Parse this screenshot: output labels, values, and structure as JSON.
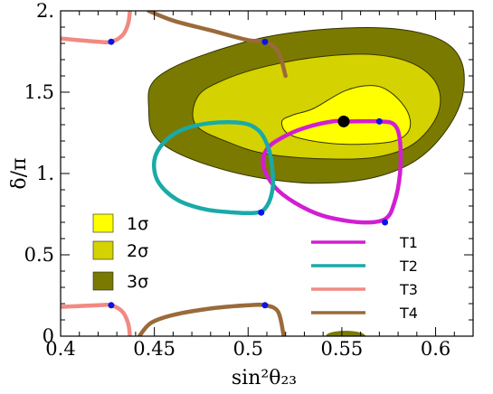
{
  "chart_data": {
    "type": "contour",
    "xlabel": "sin²θ₂₃",
    "ylabel": "δ/π",
    "xlim": [
      0.4,
      0.62
    ],
    "ylim": [
      0,
      2
    ],
    "x_ticks": [
      "0.4",
      "0.45",
      "0.5",
      "0.55",
      "0.6"
    ],
    "y_ticks": [
      "0",
      "0.5",
      "1.",
      "1.5",
      "2."
    ],
    "colors": {
      "sigma1": "#ffff00",
      "sigma2": "#d4d200",
      "sigma3": "#7a7a00",
      "T1": "#d21ed2",
      "T2": "#19aaa8",
      "T3": "#f08a82",
      "T4": "#9a6a3a",
      "endpoint": "#0a14e6"
    },
    "best_fit": {
      "x": 0.551,
      "y": 1.32
    },
    "regions": [
      {
        "name": "1σ",
        "points": [
          [
            0.535,
            1.4
          ],
          [
            0.552,
            1.51
          ],
          [
            0.567,
            1.54
          ],
          [
            0.577,
            1.49
          ],
          [
            0.585,
            1.38
          ],
          [
            0.586,
            1.27
          ],
          [
            0.578,
            1.2
          ],
          [
            0.56,
            1.18
          ],
          [
            0.54,
            1.19
          ],
          [
            0.522,
            1.24
          ],
          [
            0.518,
            1.32
          ],
          [
            0.524,
            1.36
          ]
        ]
      },
      {
        "name": "2σ",
        "points": [
          [
            0.473,
            1.47
          ],
          [
            0.486,
            1.57
          ],
          [
            0.51,
            1.66
          ],
          [
            0.54,
            1.72
          ],
          [
            0.568,
            1.73
          ],
          [
            0.589,
            1.67
          ],
          [
            0.601,
            1.54
          ],
          [
            0.601,
            1.36
          ],
          [
            0.588,
            1.18
          ],
          [
            0.568,
            1.1
          ],
          [
            0.54,
            1.09
          ],
          [
            0.51,
            1.12
          ],
          [
            0.49,
            1.19
          ],
          [
            0.472,
            1.3
          ]
        ]
      },
      {
        "name": "3σ",
        "points": [
          [
            0.447,
            1.4
          ],
          [
            0.448,
            1.54
          ],
          [
            0.458,
            1.64
          ],
          [
            0.479,
            1.74
          ],
          [
            0.51,
            1.84
          ],
          [
            0.545,
            1.89
          ],
          [
            0.578,
            1.89
          ],
          [
            0.603,
            1.82
          ],
          [
            0.614,
            1.68
          ],
          [
            0.614,
            1.46
          ],
          [
            0.604,
            1.24
          ],
          [
            0.588,
            1.07
          ],
          [
            0.565,
            0.97
          ],
          [
            0.536,
            0.94
          ],
          [
            0.508,
            0.97
          ],
          [
            0.482,
            1.04
          ],
          [
            0.46,
            1.14
          ],
          [
            0.449,
            1.25
          ]
        ]
      }
    ],
    "series": [
      {
        "name": "T1",
        "segments": [
          [
            [
              0.553,
              1.32
            ],
            [
              0.57,
              1.32
            ],
            [
              0.578,
              1.3
            ],
            [
              0.581,
              1.2
            ],
            [
              0.581,
              1.0
            ],
            [
              0.578,
              0.82
            ],
            [
              0.573,
              0.72
            ],
            [
              0.56,
              0.7
            ],
            [
              0.54,
              0.74
            ],
            [
              0.525,
              0.82
            ],
            [
              0.514,
              0.92
            ],
            [
              0.508,
              1.05
            ],
            [
              0.51,
              1.15
            ],
            [
              0.518,
              1.22
            ],
            [
              0.53,
              1.28
            ],
            [
              0.545,
              1.32
            ],
            [
              0.553,
              1.32
            ]
          ]
        ],
        "endpoints": [
          [
            0.57,
            1.32
          ],
          [
            0.573,
            0.7
          ]
        ]
      },
      {
        "name": "T2",
        "segments": [
          [
            [
              0.513,
              1.02
            ],
            [
              0.511,
              1.15
            ],
            [
              0.506,
              1.26
            ],
            [
              0.497,
              1.31
            ],
            [
              0.48,
              1.31
            ],
            [
              0.465,
              1.27
            ],
            [
              0.455,
              1.19
            ],
            [
              0.45,
              1.08
            ],
            [
              0.452,
              0.95
            ],
            [
              0.462,
              0.84
            ],
            [
              0.477,
              0.78
            ],
            [
              0.493,
              0.76
            ],
            [
              0.505,
              0.76
            ],
            [
              0.51,
              0.8
            ],
            [
              0.513,
              0.9
            ],
            [
              0.513,
              1.02
            ]
          ]
        ],
        "endpoints": [
          [
            0.507,
            0.76
          ]
        ]
      },
      {
        "name": "T3",
        "segments": [
          [
            [
              0.4,
              1.83
            ],
            [
              0.42,
              1.81
            ],
            [
              0.427,
              1.81
            ],
            [
              0.433,
              1.85
            ],
            [
              0.436,
              1.92
            ],
            [
              0.437,
              2.0
            ]
          ],
          [
            [
              0.4,
              0.18
            ],
            [
              0.42,
              0.19
            ],
            [
              0.427,
              0.19
            ],
            [
              0.433,
              0.15
            ],
            [
              0.436,
              0.08
            ],
            [
              0.437,
              0.0
            ]
          ]
        ],
        "endpoints": [
          [
            0.427,
            1.81
          ],
          [
            0.427,
            0.19
          ]
        ]
      },
      {
        "name": "T4",
        "segments": [
          [
            [
              0.447,
              2.0
            ],
            [
              0.46,
              1.94
            ],
            [
              0.48,
              1.88
            ],
            [
              0.5,
              1.82
            ],
            [
              0.509,
              1.81
            ],
            [
              0.516,
              1.75
            ],
            [
              0.52,
              1.6
            ]
          ],
          [
            [
              0.442,
              0.0
            ],
            [
              0.448,
              0.08
            ],
            [
              0.46,
              0.13
            ],
            [
              0.48,
              0.17
            ],
            [
              0.5,
              0.19
            ],
            [
              0.509,
              0.19
            ],
            [
              0.516,
              0.15
            ],
            [
              0.519,
              0.0
            ]
          ]
        ],
        "endpoints": [
          [
            0.509,
            1.81
          ],
          [
            0.509,
            0.19
          ]
        ]
      }
    ],
    "legends": {
      "regions": [
        "1σ",
        "2σ",
        "3σ"
      ],
      "lines": [
        "T1",
        "T2",
        "T3",
        "T4"
      ]
    }
  }
}
